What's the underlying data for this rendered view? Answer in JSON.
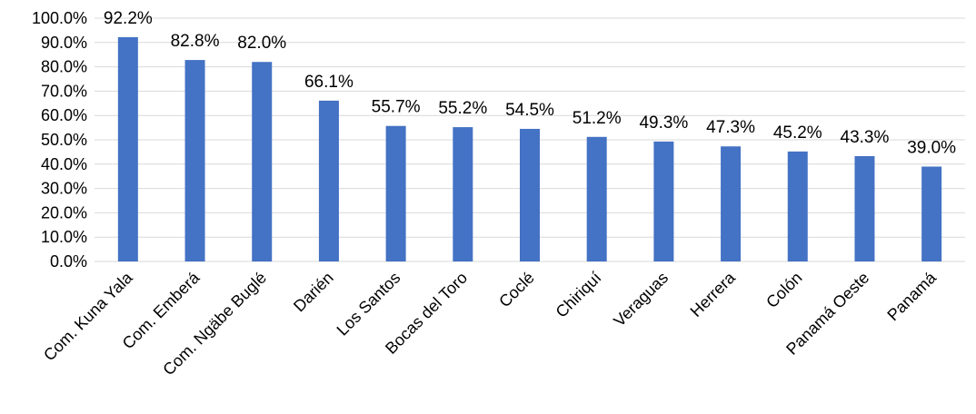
{
  "chart_data": {
    "type": "bar",
    "categories": [
      "Com. Kuna Yala",
      "Com. Emberá",
      "Com. Ngäbe Buglé",
      "Darién",
      "Los Santos",
      "Bocas del Toro",
      "Coclé",
      "Chiriquí",
      "Veraguas",
      "Herrera",
      "Colón",
      "Panamá Oeste",
      "Panamá"
    ],
    "values": [
      92.2,
      82.8,
      82.0,
      66.1,
      55.7,
      55.2,
      54.5,
      51.2,
      49.3,
      47.3,
      45.2,
      43.3,
      39.0
    ],
    "data_labels": [
      "92.2%",
      "82.8%",
      "82.0%",
      "66.1%",
      "55.7%",
      "55.2%",
      "54.5%",
      "51.2%",
      "49.3%",
      "47.3%",
      "45.2%",
      "43.3%",
      "39.0%"
    ],
    "y_ticks": [
      0,
      10,
      20,
      30,
      40,
      50,
      60,
      70,
      80,
      90,
      100
    ],
    "y_tick_labels": [
      "0.0%",
      "10.0%",
      "20.0%",
      "30.0%",
      "40.0%",
      "50.0%",
      "60.0%",
      "70.0%",
      "80.0%",
      "90.0%",
      "100.0%"
    ],
    "ylim": [
      0,
      100
    ],
    "title": "",
    "xlabel": "",
    "ylabel": "",
    "grid": true,
    "legend": "none",
    "bar_color": "#4472c4"
  }
}
